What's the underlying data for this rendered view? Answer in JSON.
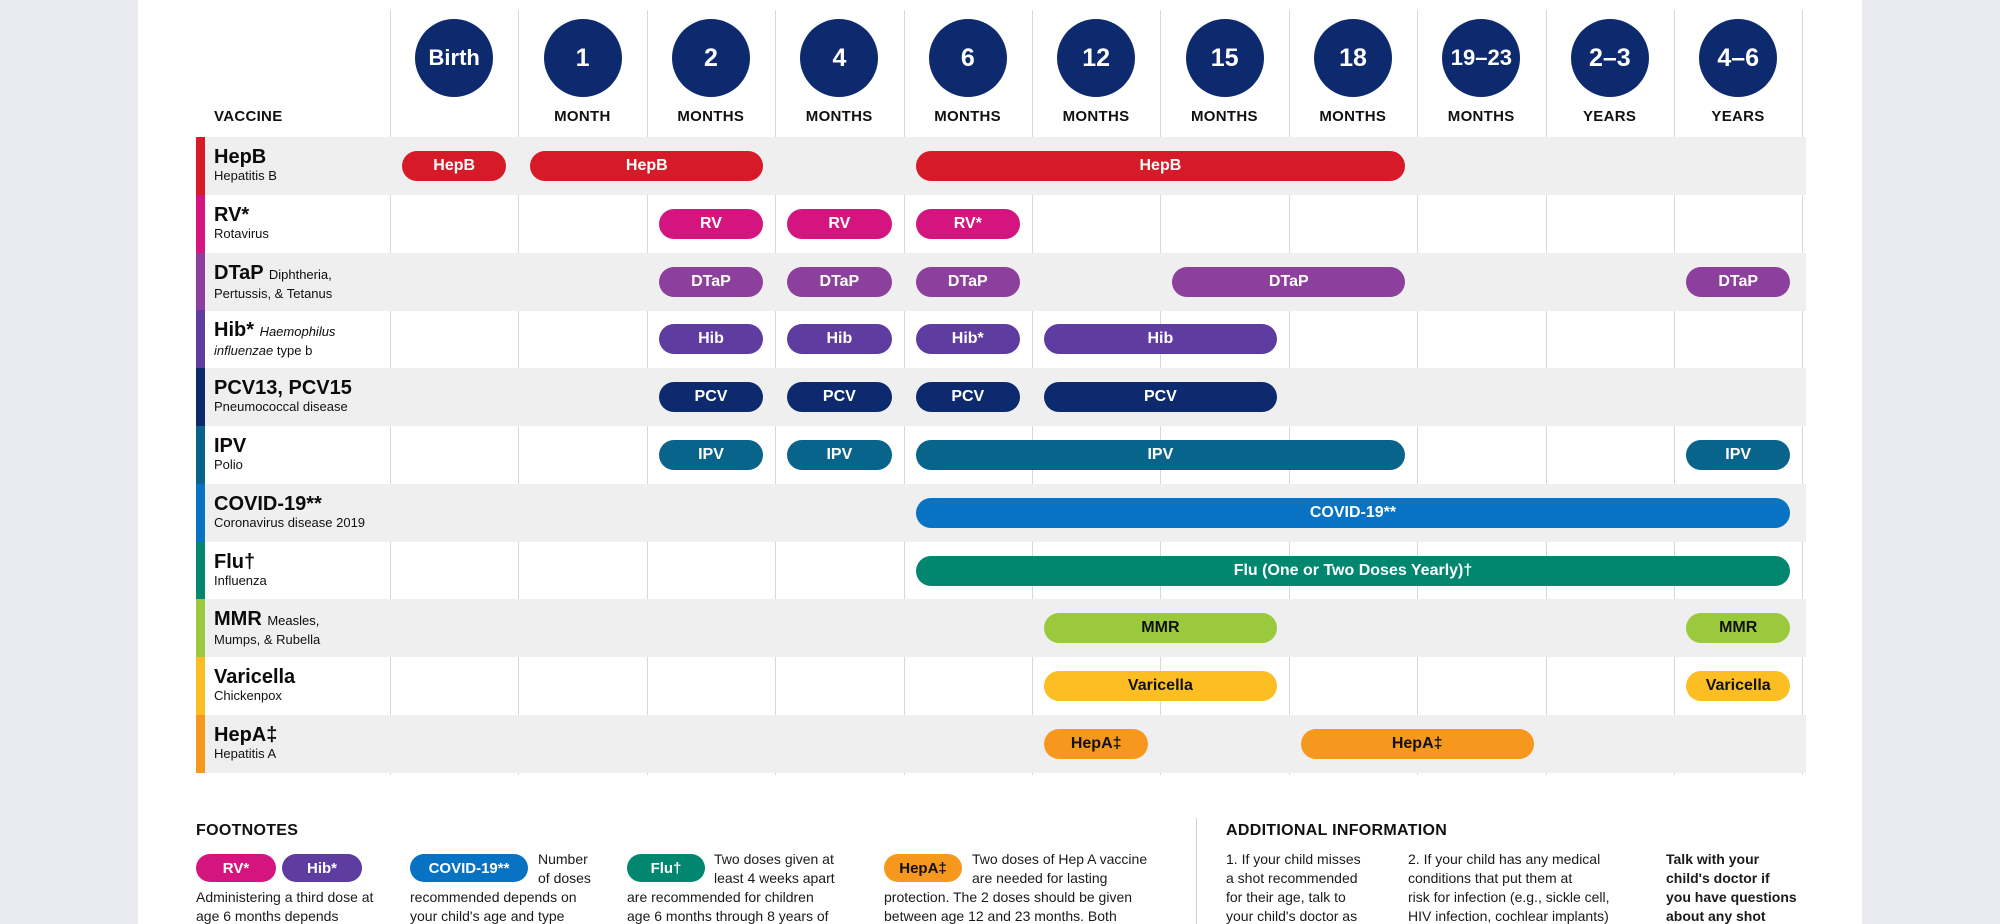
{
  "header": {
    "vaccine_label": "VACCINE",
    "ages": [
      {
        "big": "Birth",
        "unit": ""
      },
      {
        "big": "1",
        "unit": "MONTH"
      },
      {
        "big": "2",
        "unit": "MONTHS"
      },
      {
        "big": "4",
        "unit": "MONTHS"
      },
      {
        "big": "6",
        "unit": "MONTHS"
      },
      {
        "big": "12",
        "unit": "MONTHS"
      },
      {
        "big": "15",
        "unit": "MONTHS"
      },
      {
        "big": "18",
        "unit": "MONTHS"
      },
      {
        "big": "19–23",
        "unit": "MONTHS"
      },
      {
        "big": "2–3",
        "unit": "YEARS"
      },
      {
        "big": "4–6",
        "unit": "YEARS"
      }
    ]
  },
  "vaccines": [
    {
      "name": "HepB",
      "inline": "",
      "sub": "Hepatitis B",
      "color": "#d71a28",
      "text_color": "#ffffff",
      "doses": [
        {
          "label": "HepB",
          "from": 0,
          "to": 0
        },
        {
          "label": "HepB",
          "from": 1,
          "to": 2
        },
        {
          "label": "HepB",
          "from": 4,
          "to": 7
        }
      ]
    },
    {
      "name": "RV*",
      "inline": "",
      "sub": "Rotavirus",
      "color": "#d4157f",
      "text_color": "#ffffff",
      "doses": [
        {
          "label": "RV",
          "from": 2,
          "to": 2
        },
        {
          "label": "RV",
          "from": 3,
          "to": 3
        },
        {
          "label": "RV*",
          "from": 4,
          "to": 4
        }
      ]
    },
    {
      "name": "DTaP",
      "inline": "Diphtheria,",
      "sub": "Pertussis, & Tetanus",
      "color": "#8c3f9c",
      "text_color": "#ffffff",
      "doses": [
        {
          "label": "DTaP",
          "from": 2,
          "to": 2
        },
        {
          "label": "DTaP",
          "from": 3,
          "to": 3
        },
        {
          "label": "DTaP",
          "from": 4,
          "to": 4
        },
        {
          "label": "DTaP",
          "from": 6,
          "to": 7
        },
        {
          "label": "DTaP",
          "from": 10,
          "to": 10
        }
      ]
    },
    {
      "name": "Hib*",
      "inline": "Haemophilus",
      "sub_italic": "influenzae",
      "sub": " type b",
      "color": "#5f3c9f",
      "text_color": "#ffffff",
      "doses": [
        {
          "label": "Hib",
          "from": 2,
          "to": 2
        },
        {
          "label": "Hib",
          "from": 3,
          "to": 3
        },
        {
          "label": "Hib*",
          "from": 4,
          "to": 4
        },
        {
          "label": "Hib",
          "from": 5,
          "to": 6
        }
      ]
    },
    {
      "name": "PCV13, PCV15",
      "inline": "",
      "sub": "Pneumococcal disease",
      "color": "#0e2a6f",
      "text_color": "#ffffff",
      "doses": [
        {
          "label": "PCV",
          "from": 2,
          "to": 2
        },
        {
          "label": "PCV",
          "from": 3,
          "to": 3
        },
        {
          "label": "PCV",
          "from": 4,
          "to": 4
        },
        {
          "label": "PCV",
          "from": 5,
          "to": 6
        }
      ]
    },
    {
      "name": "IPV",
      "inline": "",
      "sub": "Polio",
      "color": "#08648a",
      "text_color": "#ffffff",
      "doses": [
        {
          "label": "IPV",
          "from": 2,
          "to": 2
        },
        {
          "label": "IPV",
          "from": 3,
          "to": 3
        },
        {
          "label": "IPV",
          "from": 4,
          "to": 7
        },
        {
          "label": "IPV",
          "from": 10,
          "to": 10
        }
      ]
    },
    {
      "name": "COVID-19**",
      "inline": "",
      "sub": "Coronavirus disease 2019",
      "color": "#0773c2",
      "text_color": "#ffffff",
      "doses": [
        {
          "label": "COVID-19**",
          "from": 4,
          "to": 10
        }
      ]
    },
    {
      "name": "Flu†",
      "inline": "",
      "sub": "Influenza",
      "color": "#01876f",
      "text_color": "#ffffff",
      "doses": [
        {
          "label": "Flu (One or Two Doses Yearly)†",
          "from": 4,
          "to": 10
        }
      ]
    },
    {
      "name": "MMR",
      "inline": "Measles,",
      "sub": "Mumps, & Rubella",
      "color": "#9ac93e",
      "text_color": "#111111",
      "doses": [
        {
          "label": "MMR",
          "from": 5,
          "to": 6
        },
        {
          "label": "MMR",
          "from": 10,
          "to": 10
        }
      ]
    },
    {
      "name": "Varicella",
      "inline": "",
      "sub": "Chickenpox",
      "color": "#fcbe23",
      "text_color": "#111111",
      "doses": [
        {
          "label": "Varicella",
          "from": 5,
          "to": 6
        },
        {
          "label": "Varicella",
          "from": 10,
          "to": 10
        }
      ]
    },
    {
      "name": "HepA‡",
      "inline": "",
      "sub": "Hepatitis A",
      "color": "#f6981d",
      "text_color": "#111111",
      "doses": [
        {
          "label": "HepA‡",
          "from": 5,
          "to": 5
        },
        {
          "label": "HepA‡",
          "from": 7,
          "to": 8
        }
      ]
    }
  ],
  "footnotes": {
    "title": "FOOTNOTES",
    "rv_label": "RV*",
    "hib_label": "Hib*",
    "rv_hib_text": "Administering a third dose at age 6 months depends",
    "covid_label": "COVID-19**",
    "covid_text_a": "Number",
    "covid_text_b": "of doses",
    "covid_text_c": "recommended depends on",
    "covid_text_d": "your child's age and type",
    "flu_label": "Flu†",
    "flu_text_a": "Two doses given at",
    "flu_text_b": "least 4 weeks apart",
    "flu_text_c": "are recommended for children",
    "flu_text_d": "age 6 months through 8 years of",
    "hepa_label": "HepA‡",
    "hepa_text_a": "Two doses of Hep A vaccine",
    "hepa_text_b": "are needed for lasting",
    "hepa_text_c": "protection. The 2 doses should be given",
    "hepa_text_d": "between age 12 and 23 months. Both"
  },
  "additional": {
    "title": "ADDITIONAL INFORMATION",
    "col1": [
      "1. If your child misses",
      "a shot recommended",
      "for their age, talk to",
      "your child's doctor as"
    ],
    "col2": [
      "2. If your child has any medical",
      "conditions that put them at",
      "risk for infection (e.g., sickle cell,",
      "HIV infection, cochlear implants)"
    ],
    "col3": [
      "Talk with your",
      "child's doctor if",
      "you have questions",
      "about any shot"
    ]
  }
}
